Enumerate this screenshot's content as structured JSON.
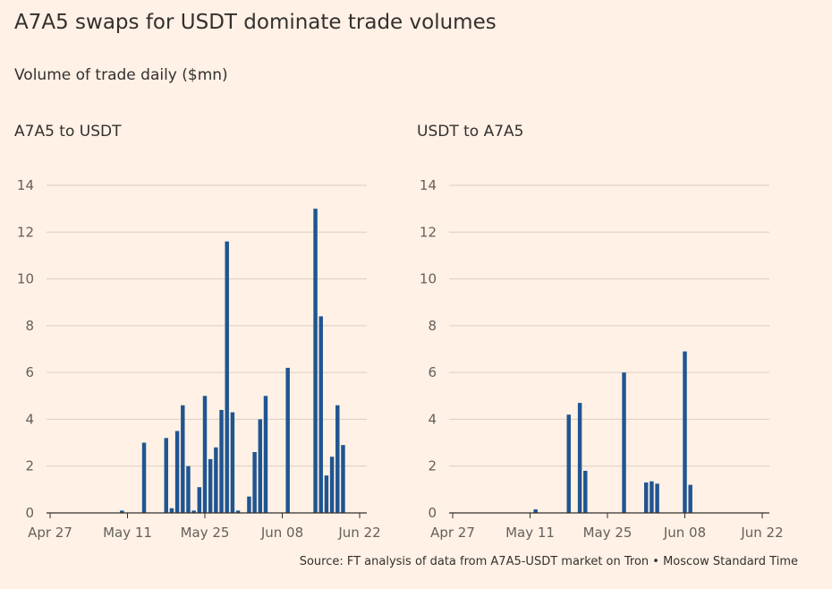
{
  "title": "A7A5 swaps for USDT dominate trade volumes",
  "subtitle": "Volume of trade daily ($mn)",
  "source": "Source: FT analysis of data from A7A5-USDT market on Tron • Moscow Standard Time",
  "colors": {
    "background": "#fff1e5",
    "bar": "#1f5591",
    "grid": "#d9cdc3",
    "axis": "#33302e",
    "text": "#33302e"
  },
  "chart_data": [
    {
      "type": "bar",
      "title": "A7A5 to USDT",
      "xlabel": "",
      "ylabel": "",
      "ylim": [
        0,
        14
      ],
      "yticks": [
        0,
        2,
        4,
        6,
        8,
        10,
        12,
        14
      ],
      "xlim": [
        "2025-04-27",
        "2025-06-22"
      ],
      "xticks": [
        {
          "date": "2025-04-27",
          "label": "Apr 27"
        },
        {
          "date": "2025-05-11",
          "label": "May 11"
        },
        {
          "date": "2025-05-25",
          "label": "May 25"
        },
        {
          "date": "2025-06-08",
          "label": "Jun 08"
        },
        {
          "date": "2025-06-22",
          "label": "Jun 22"
        }
      ],
      "grid": true,
      "bars": [
        {
          "date": "2025-05-10",
          "value": 0.1
        },
        {
          "date": "2025-05-14",
          "value": 3.0
        },
        {
          "date": "2025-05-18",
          "value": 3.2
        },
        {
          "date": "2025-05-19",
          "value": 0.2
        },
        {
          "date": "2025-05-20",
          "value": 3.5
        },
        {
          "date": "2025-05-21",
          "value": 4.6
        },
        {
          "date": "2025-05-22",
          "value": 2.0
        },
        {
          "date": "2025-05-23",
          "value": 0.1
        },
        {
          "date": "2025-05-24",
          "value": 1.1
        },
        {
          "date": "2025-05-25",
          "value": 5.0
        },
        {
          "date": "2025-05-26",
          "value": 2.3
        },
        {
          "date": "2025-05-27",
          "value": 2.8
        },
        {
          "date": "2025-05-28",
          "value": 4.4
        },
        {
          "date": "2025-05-29",
          "value": 11.6
        },
        {
          "date": "2025-05-30",
          "value": 4.3
        },
        {
          "date": "2025-05-31",
          "value": 0.1
        },
        {
          "date": "2025-06-02",
          "value": 0.7
        },
        {
          "date": "2025-06-03",
          "value": 2.6
        },
        {
          "date": "2025-06-04",
          "value": 4.0
        },
        {
          "date": "2025-06-05",
          "value": 5.0
        },
        {
          "date": "2025-06-09",
          "value": 6.2
        },
        {
          "date": "2025-06-14",
          "value": 13.0
        },
        {
          "date": "2025-06-15",
          "value": 8.4
        },
        {
          "date": "2025-06-16",
          "value": 1.6
        },
        {
          "date": "2025-06-17",
          "value": 2.4
        },
        {
          "date": "2025-06-18",
          "value": 4.6
        },
        {
          "date": "2025-06-19",
          "value": 2.9
        }
      ]
    },
    {
      "type": "bar",
      "title": "USDT to A7A5",
      "xlabel": "",
      "ylabel": "",
      "ylim": [
        0,
        14
      ],
      "yticks": [
        0,
        2,
        4,
        6,
        8,
        10,
        12,
        14
      ],
      "xlim": [
        "2025-04-27",
        "2025-06-22"
      ],
      "xticks": [
        {
          "date": "2025-04-27",
          "label": "Apr 27"
        },
        {
          "date": "2025-05-11",
          "label": "May 11"
        },
        {
          "date": "2025-05-25",
          "label": "May 25"
        },
        {
          "date": "2025-06-08",
          "label": "Jun 08"
        },
        {
          "date": "2025-06-22",
          "label": "Jun 22"
        }
      ],
      "grid": true,
      "bars": [
        {
          "date": "2025-05-12",
          "value": 0.15
        },
        {
          "date": "2025-05-18",
          "value": 4.2
        },
        {
          "date": "2025-05-20",
          "value": 4.7
        },
        {
          "date": "2025-05-21",
          "value": 1.8
        },
        {
          "date": "2025-05-28",
          "value": 6.0
        },
        {
          "date": "2025-06-01",
          "value": 1.3
        },
        {
          "date": "2025-06-02",
          "value": 1.35
        },
        {
          "date": "2025-06-03",
          "value": 1.25
        },
        {
          "date": "2025-06-08",
          "value": 6.9
        },
        {
          "date": "2025-06-09",
          "value": 1.2
        }
      ]
    }
  ]
}
